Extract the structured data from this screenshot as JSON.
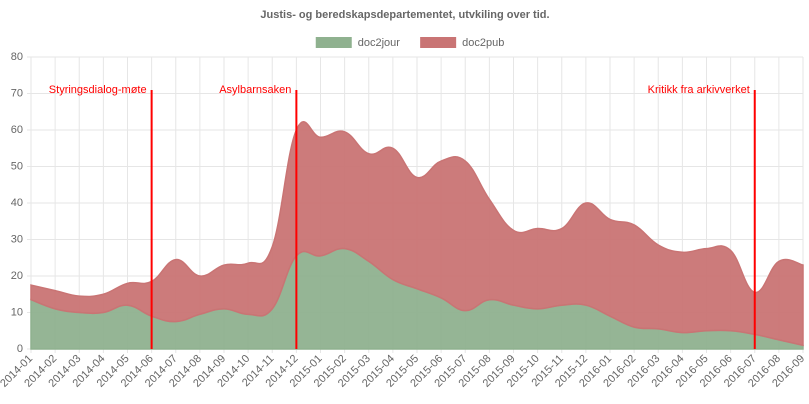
{
  "chart_data": {
    "type": "stacked_area",
    "title": "Justis- og beredskapsdepartementet, utvkiling over tid.",
    "categories": [
      "2014-01",
      "2014-02",
      "2014-03",
      "2014-04",
      "2014-05",
      "2014-06",
      "2014-07",
      "2014-08",
      "2014-09",
      "2014-10",
      "2014-11",
      "2014-12",
      "2015-01",
      "2015-02",
      "2015-03",
      "2015-04",
      "2015-05",
      "2015-06",
      "2015-07",
      "2015-08",
      "2015-09",
      "2015-10",
      "2015-11",
      "2015-12",
      "2016-01",
      "2016-02",
      "2016-03",
      "2016-04",
      "2016-05",
      "2016-06",
      "2016-07",
      "2016-08",
      "2016-09"
    ],
    "series": [
      {
        "name": "doc2jour",
        "color": "#8fb18f",
        "values": [
          13.5,
          11,
          10,
          10,
          12,
          9,
          7.5,
          9.5,
          11,
          9.5,
          11,
          25.5,
          25.5,
          27.5,
          24,
          19,
          16.5,
          14,
          10.5,
          13.5,
          12,
          11,
          12,
          12,
          9,
          6,
          5.5,
          4.5,
          5,
          5,
          4,
          2.5,
          1
        ]
      },
      {
        "name": "doc2pub",
        "color": "#c97474",
        "values": [
          4,
          5,
          4.5,
          5,
          6,
          9.5,
          17,
          10.5,
          12,
          14,
          17,
          34.5,
          32.5,
          32,
          29.5,
          36,
          30.5,
          37.5,
          41,
          27.5,
          20.5,
          22,
          21,
          28,
          26.5,
          28,
          23,
          22,
          22.5,
          22,
          11.5,
          21.5,
          22
        ]
      }
    ],
    "annotations": [
      {
        "text": "Styringsdialog-møte",
        "x": "2014-06"
      },
      {
        "text": "Asylbarnsaken",
        "x": "2014-12"
      },
      {
        "text": "Kritikk fra arkivverket",
        "x": "2016-07"
      }
    ],
    "annotation_color": "#ff0000",
    "ylim": [
      0,
      80
    ],
    "yticks": [
      0,
      10,
      20,
      30,
      40,
      50,
      60,
      70,
      80
    ],
    "grid": true,
    "legend": "top"
  }
}
